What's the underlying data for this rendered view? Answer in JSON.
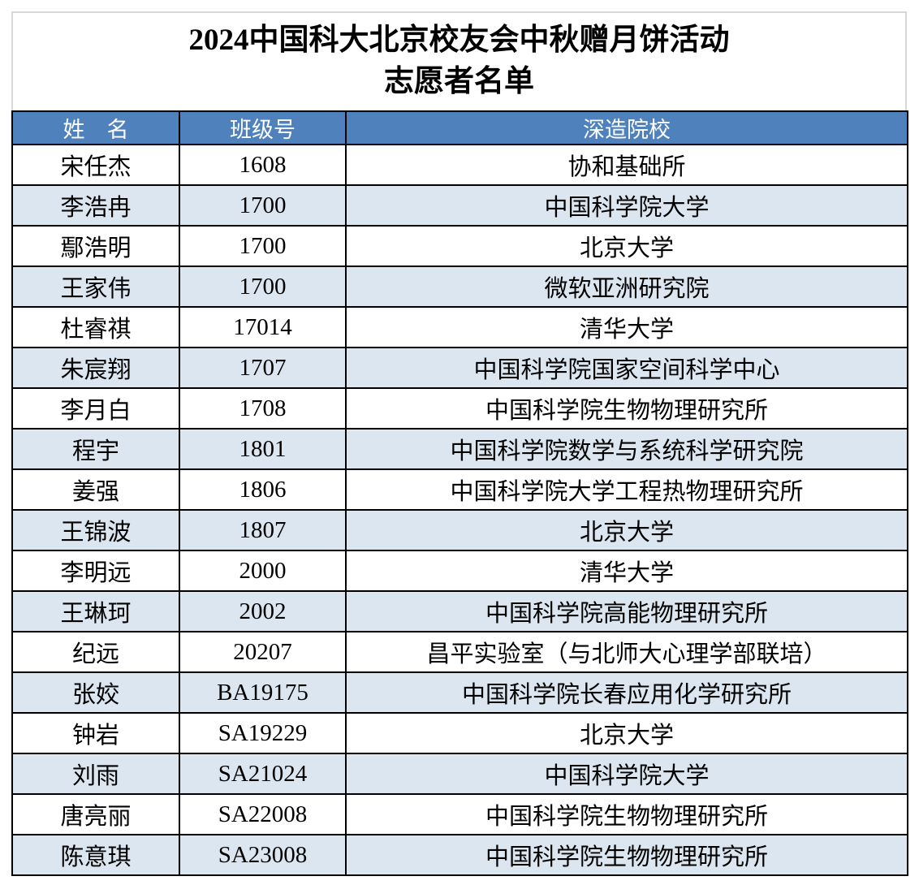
{
  "title": {
    "line1": "2024中国科大北京校友会中秋赠月饼活动",
    "line2": "志愿者名单"
  },
  "table": {
    "columns": [
      "姓　名",
      "班级号",
      "深造院校"
    ],
    "rows": [
      {
        "name": "宋任杰",
        "class_no": "1608",
        "institution": "协和基础所"
      },
      {
        "name": "李浩冉",
        "class_no": "1700",
        "institution": "中国科学院大学"
      },
      {
        "name": "鄢浩明",
        "class_no": "1700",
        "institution": "北京大学"
      },
      {
        "name": "王家伟",
        "class_no": "1700",
        "institution": "微软亚洲研究院"
      },
      {
        "name": "杜睿祺",
        "class_no": "17014",
        "institution": "清华大学"
      },
      {
        "name": "朱宸翔",
        "class_no": "1707",
        "institution": "中国科学院国家空间科学中心"
      },
      {
        "name": "李月白",
        "class_no": "1708",
        "institution": "中国科学院生物物理研究所"
      },
      {
        "name": "程宇",
        "class_no": "1801",
        "institution": "中国科学院数学与系统科学研究院"
      },
      {
        "name": "姜强",
        "class_no": "1806",
        "institution": "中国科学院大学工程热物理研究所"
      },
      {
        "name": "王锦波",
        "class_no": "1807",
        "institution": "北京大学"
      },
      {
        "name": "李明远",
        "class_no": "2000",
        "institution": "清华大学"
      },
      {
        "name": "王琳珂",
        "class_no": "2002",
        "institution": "中国科学院高能物理研究所"
      },
      {
        "name": "纪远",
        "class_no": "20207",
        "institution": "昌平实验室（与北师大心理学部联培）"
      },
      {
        "name": "张姣",
        "class_no": "BA19175",
        "institution": "中国科学院长春应用化学研究所"
      },
      {
        "name": "钟岩",
        "class_no": "SA19229",
        "institution": "北京大学"
      },
      {
        "name": "刘雨",
        "class_no": "SA21024",
        "institution": "中国科学院大学"
      },
      {
        "name": "唐亮丽",
        "class_no": "SA22008",
        "institution": "中国科学院生物物理研究所"
      },
      {
        "name": "陈意琪",
        "class_no": "SA23008",
        "institution": "中国科学院生物物理研究所"
      }
    ]
  },
  "colors": {
    "header_bg": "#4f81bd",
    "header_text": "#ffffff",
    "alt_row_bg": "#dce6f1",
    "border": "#000000",
    "title_frame_border": "#d8d8d8"
  }
}
